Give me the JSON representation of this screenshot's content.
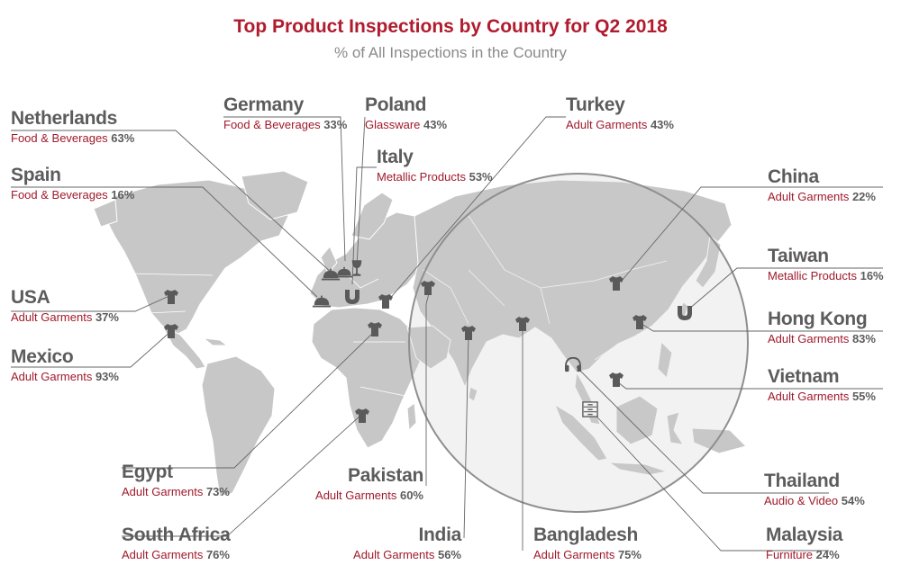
{
  "title": "Top Product Inspections by Country for Q2 2018",
  "subtitle": "% of All Inspections in the Country",
  "colors": {
    "title": "#b01c2e",
    "category": "#a01a2b",
    "country": "#5c5c5c",
    "land": "#c7c7c7",
    "border": "#ffffff",
    "leader": "#666666",
    "icon": "#5a5a5a"
  },
  "countries": [
    {
      "id": "netherlands",
      "name": "Netherlands",
      "category": "Food & Beverages",
      "percent": "63%",
      "icon": "food-cloche-icon"
    },
    {
      "id": "germany",
      "name": "Germany",
      "category": "Food & Beverages",
      "percent": "33%",
      "icon": "food-cloche-icon"
    },
    {
      "id": "poland",
      "name": "Poland",
      "category": "Glassware",
      "percent": "43%",
      "icon": "wine-glass-icon"
    },
    {
      "id": "turkey",
      "name": "Turkey",
      "category": "Adult Garments",
      "percent": "43%",
      "icon": "tshirt-icon"
    },
    {
      "id": "spain",
      "name": "Spain",
      "category": "Food & Beverages",
      "percent": "16%",
      "icon": "food-cloche-icon"
    },
    {
      "id": "italy",
      "name": "Italy",
      "category": "Metallic Products",
      "percent": "53%",
      "icon": "magnet-icon"
    },
    {
      "id": "china",
      "name": "China",
      "category": "Adult Garments",
      "percent": "22%",
      "icon": "tshirt-icon"
    },
    {
      "id": "taiwan",
      "name": "Taiwan",
      "category": "Metallic Products",
      "percent": "16%",
      "icon": "magnet-icon"
    },
    {
      "id": "usa",
      "name": "USA",
      "category": "Adult Garments",
      "percent": "37%",
      "icon": "tshirt-icon"
    },
    {
      "id": "hong-kong",
      "name": "Hong Kong",
      "category": "Adult Garments",
      "percent": "83%",
      "icon": "tshirt-icon"
    },
    {
      "id": "mexico",
      "name": "Mexico",
      "category": "Adult Garments",
      "percent": "93%",
      "icon": "tshirt-icon"
    },
    {
      "id": "vietnam",
      "name": "Vietnam",
      "category": "Adult Garments",
      "percent": "55%",
      "icon": "tshirt-icon"
    },
    {
      "id": "egypt",
      "name": "Egypt",
      "category": "Adult Garments",
      "percent": "73%",
      "icon": "tshirt-icon"
    },
    {
      "id": "pakistan",
      "name": "Pakistan",
      "category": "Adult Garments",
      "percent": "60%",
      "icon": "tshirt-icon"
    },
    {
      "id": "thailand",
      "name": "Thailand",
      "category": "Audio & Video",
      "percent": "54%",
      "icon": "headphones-icon"
    },
    {
      "id": "south-africa",
      "name": "South Africa",
      "category": "Adult Garments",
      "percent": "76%",
      "icon": "tshirt-icon"
    },
    {
      "id": "india",
      "name": "India",
      "category": "Adult Garments",
      "percent": "56%",
      "icon": "tshirt-icon"
    },
    {
      "id": "bangladesh",
      "name": "Bangladesh",
      "category": "Adult Garments",
      "percent": "75%",
      "icon": "tshirt-icon"
    },
    {
      "id": "malaysia",
      "name": "Malaysia",
      "category": "Furniture",
      "percent": "24%",
      "icon": "cabinet-icon"
    }
  ]
}
